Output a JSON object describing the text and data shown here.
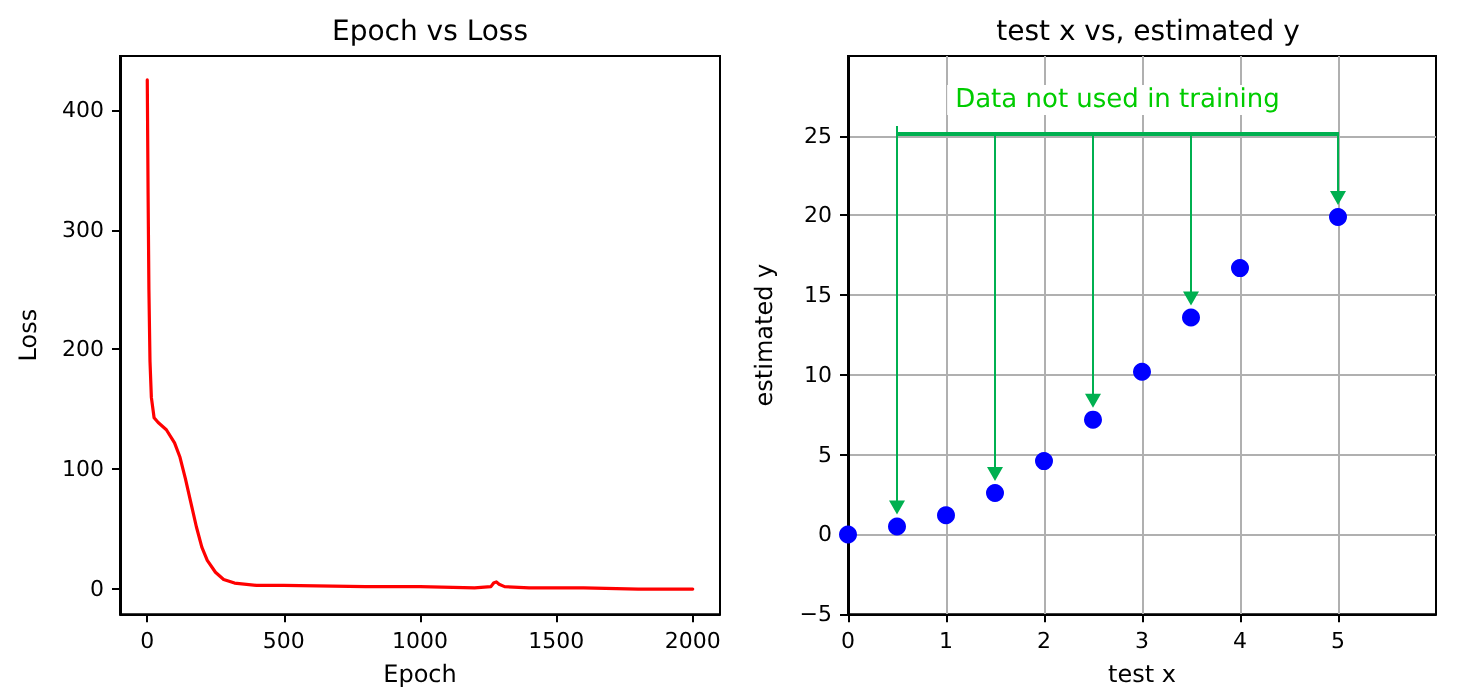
{
  "chart_data": [
    {
      "type": "line",
      "title": "Epoch vs Loss",
      "xlabel": "Epoch",
      "ylabel": "Loss",
      "xlim": [
        -100,
        2100
      ],
      "ylim": [
        -21,
        445
      ],
      "xticks": [
        0,
        500,
        1000,
        1500,
        2000
      ],
      "yticks": [
        0,
        100,
        200,
        300,
        400
      ],
      "grid": false,
      "marker": "none",
      "line_style": "solid",
      "series": [
        {
          "color": "#ff0000",
          "x": [
            0,
            3,
            6,
            10,
            15,
            25,
            40,
            70,
            100,
            120,
            140,
            160,
            180,
            200,
            220,
            250,
            280,
            320,
            400,
            500,
            800,
            1000,
            1200,
            1260,
            1270,
            1280,
            1290,
            1310,
            1400,
            1500,
            1600,
            1800,
            2000
          ],
          "values": [
            425,
            330,
            250,
            190,
            160,
            143,
            139,
            133,
            122,
            110,
            92,
            72,
            52,
            35,
            24,
            14,
            8,
            5,
            3,
            3,
            2,
            2,
            1,
            2,
            5,
            6,
            4,
            2,
            1,
            1,
            1,
            0,
            0
          ]
        }
      ]
    },
    {
      "type": "scatter",
      "title": "test x vs, estimated y",
      "xlabel": "test x",
      "ylabel": "estimated y",
      "xlim": [
        0,
        6
      ],
      "ylim": [
        -5,
        30
      ],
      "xticks": [
        0,
        1,
        2,
        3,
        4,
        5
      ],
      "yticks": [
        -5,
        0,
        5,
        10,
        15,
        20,
        25
      ],
      "grid": true,
      "marker": "circle",
      "annotations": [
        "Data not used in training"
      ],
      "series": [
        {
          "color": "#0000ff",
          "x": [
            0,
            1,
            2,
            3,
            4
          ],
          "values": [
            0,
            1.2,
            4.6,
            10.2,
            16.7
          ]
        },
        {
          "color": "#0000ff",
          "x": [
            0.5,
            1.5,
            2.5,
            3.5,
            5
          ],
          "values": [
            0.5,
            2.6,
            7.2,
            13.6,
            19.9
          ]
        }
      ]
    }
  ]
}
